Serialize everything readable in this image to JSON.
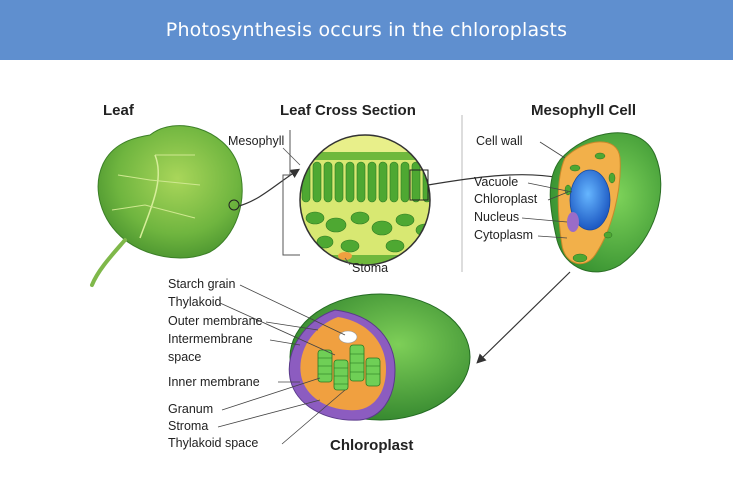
{
  "banner": {
    "title": "Photosynthesis occurs in the chloroplasts",
    "color": "#5f8fcf"
  },
  "headings": {
    "leaf": "Leaf",
    "cross_section": "Leaf Cross Section",
    "mesophyll_cell": "Mesophyll Cell",
    "chloroplast": "Chloroplast"
  },
  "cross_section_labels": {
    "mesophyll": "Mesophyll",
    "stoma": "Stoma"
  },
  "cell_labels": [
    "Cell wall",
    "Vacuole",
    "Chloroplast",
    "Nucleus",
    "Cytoplasm"
  ],
  "chloroplast_labels": [
    "Starch grain",
    "Thylakoid",
    "Outer membrane",
    "Intermembrane",
    "space",
    "Inner membrane",
    "Granum",
    "Stroma",
    "Thylakoid space"
  ],
  "icons": [
    "leaf-icon",
    "arrow-icon"
  ],
  "colors": {
    "leaf_green": "#5aa83a",
    "vacuole_blue": "#2b6fd0",
    "cytoplasm_orange": "#f2b04a",
    "membrane_purple": "#9a6cc8"
  }
}
